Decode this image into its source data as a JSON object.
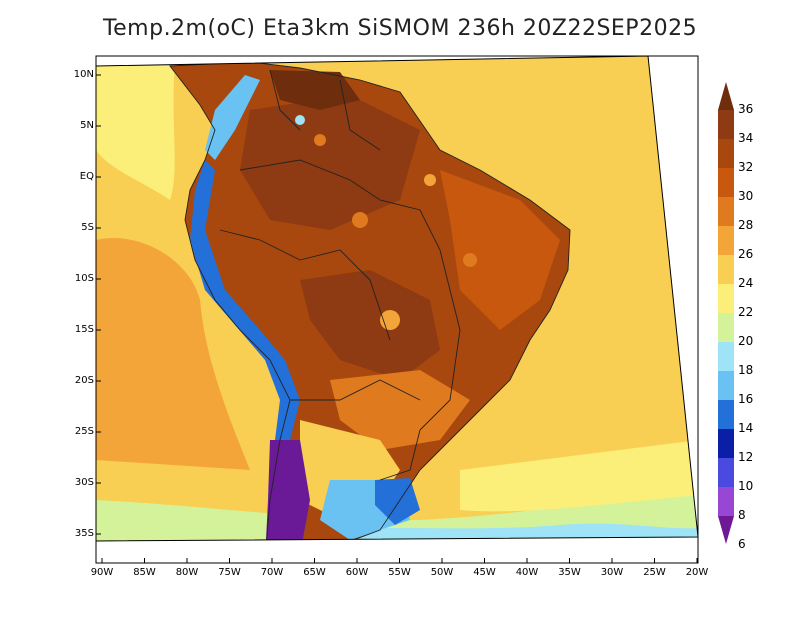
{
  "title": "Temp.2m(oC) Eta3km SiSMOM 236h 20Z22SEP2025",
  "lat_labels": [
    "10N",
    "5N",
    "EQ",
    "5S",
    "10S",
    "15S",
    "20S",
    "25S",
    "30S",
    "35S"
  ],
  "lon_labels": [
    "90W",
    "85W",
    "80W",
    "75W",
    "70W",
    "65W",
    "60W",
    "55W",
    "50W",
    "45W",
    "40W",
    "35W",
    "30W",
    "25W",
    "20W"
  ],
  "colorbar": {
    "labels": [
      "36",
      "34",
      "32",
      "30",
      "28",
      "26",
      "24",
      "22",
      "20",
      "18",
      "16",
      "14",
      "12",
      "10",
      "8",
      "6"
    ],
    "colors": [
      "#6e2e0e",
      "#8e3a12",
      "#a8480f",
      "#c8580e",
      "#e07a1e",
      "#f4a53a",
      "#f8cf52",
      "#fbef7a",
      "#d3f29a",
      "#9ee3f6",
      "#6ac2f2",
      "#2270d8",
      "#0a1ea6",
      "#4a4ae0",
      "#9846d4",
      "#6e1896"
    ]
  },
  "map_colors": {
    "ocean_warm": "#f4a53a",
    "ocean_mid": "#f8cf52",
    "ocean_cool": "#fbef7a",
    "land_hot": "#a8480f",
    "land_very_hot": "#8e3a12",
    "land_warm": "#c8580e",
    "andes_cold": "#2270d8",
    "patagonia": "#6a1a96"
  }
}
